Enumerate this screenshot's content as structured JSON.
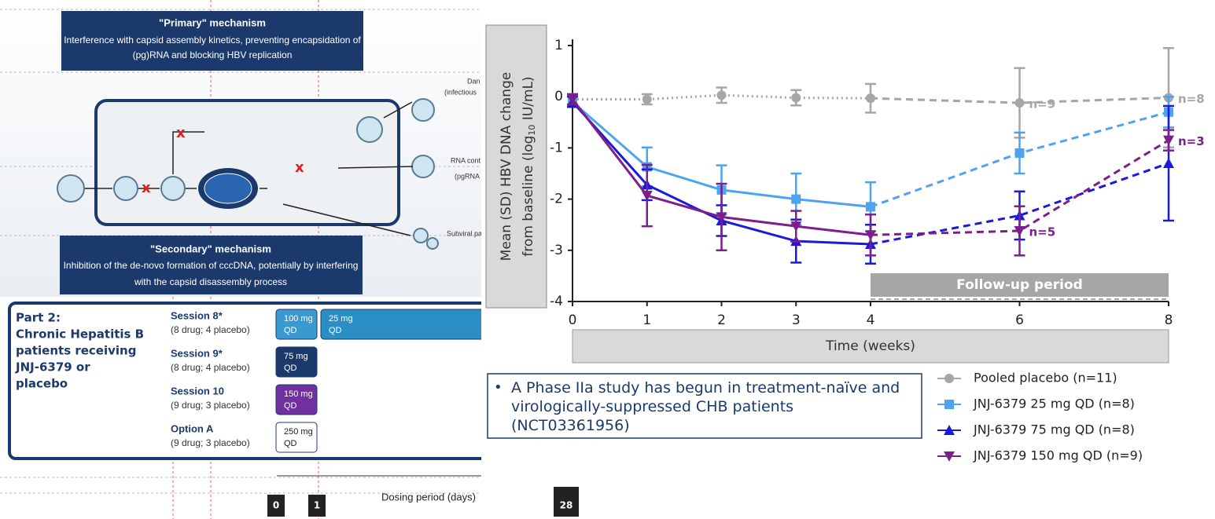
{
  "diagram": {
    "primary_title": "\"Primary\" mechanism",
    "primary_lines": [
      "Interference with capsid assembly kinetics, preventing encapsidation of",
      "(pg)RNA and blocking HBV replication"
    ],
    "secondary_title": "\"Secondary\" mechanism",
    "secondary_lines": [
      "Inhibition of the de-novo formation of cccDNA, potentially by interfering",
      "with the capsid disassembly process"
    ],
    "side_labels": [
      "Dan",
      "(infectious",
      "RNA cont",
      "(pgRNA",
      "Subviral pa"
    ]
  },
  "table": {
    "part_title": "Part 2:",
    "part_lines": [
      "Chronic Hepatitis B",
      "patients receiving",
      "JNJ-6379 or",
      "placebo"
    ],
    "rows": [
      {
        "session": "Session 8*",
        "detail": "(8 drug; 4 placebo)",
        "doses": [
          [
            "100 mg",
            "QD"
          ],
          [
            "25 mg",
            "QD"
          ]
        ]
      },
      {
        "session": "Session 9*",
        "detail": "(8 drug; 4 placebo)",
        "doses": [
          [
            "75 mg",
            "QD"
          ]
        ]
      },
      {
        "session": "Session 10",
        "detail": "(9 drug; 3 placebo)",
        "doses": [
          [
            "150 mg",
            "QD"
          ]
        ]
      },
      {
        "session": "Option A",
        "detail": "(9 drug; 3 placebo)",
        "doses": [
          [
            "250 mg",
            "QD"
          ]
        ]
      }
    ]
  },
  "timeline": {
    "start": "0",
    "day1": "1",
    "label": "Dosing period (days)",
    "end": "28"
  },
  "note": "A Phase IIa study has begun in treatment-naïve and virologically-suppressed CHB patients (NCT03361956)",
  "chart_data": {
    "type": "line",
    "y_label_lines": [
      "Mean (SD) HBV DNA change",
      "from baseline (log",
      "10",
      " IU/mL)"
    ],
    "x_label": "Time (weeks)",
    "x": [
      0,
      1,
      2,
      3,
      4,
      6,
      8
    ],
    "xlim": [
      0,
      8
    ],
    "xticks": [
      0,
      1,
      2,
      3,
      4,
      6,
      8
    ],
    "ylim": [
      -4,
      1
    ],
    "yticks": [
      -4,
      -3,
      -2,
      -1,
      0,
      1
    ],
    "followup": {
      "label": "Follow-up period",
      "xlim": [
        4,
        8
      ]
    },
    "series": [
      {
        "name": "Pooled placebo (n=11)",
        "color": "#a6a6a6",
        "marker": "circle",
        "line_style": "dotted",
        "values": [
          -0.05,
          -0.05,
          0.03,
          -0.02,
          -0.03,
          -0.12,
          -0.02
        ],
        "errors": [
          0.1,
          0.1,
          0.15,
          0.15,
          0.28,
          0.68,
          0.97
        ]
      },
      {
        "name": "JNJ-6379 25 mg QD (n=8)",
        "color": "#4da3f0",
        "marker": "square",
        "line_style": "solid",
        "values": [
          -0.1,
          -1.37,
          -1.82,
          -2.0,
          -2.15,
          -1.1,
          -0.3
        ],
        "errors": [
          0.1,
          0.38,
          0.48,
          0.5,
          0.48,
          0.4,
          0.3
        ]
      },
      {
        "name": "JNJ-6379 75 mg QD (n=8)",
        "color": "#1a1ad8",
        "marker": "triangle-up",
        "line_style": "solid",
        "values": [
          -0.1,
          -1.72,
          -2.42,
          -2.82,
          -2.88,
          -2.32,
          -1.3
        ],
        "errors": [
          0.1,
          0.3,
          0.3,
          0.42,
          0.38,
          0.47,
          1.12
        ]
      },
      {
        "name": "JNJ-6379 150 mg QD (n=9)",
        "color": "#7a1f8c",
        "marker": "triangle-down",
        "line_style": "solid",
        "values": [
          -0.05,
          -1.93,
          -2.35,
          -2.53,
          -2.7,
          -2.62,
          -0.85
        ],
        "errors": [
          0.1,
          0.6,
          0.65,
          0.3,
          0.4,
          0.48,
          0.2
        ]
      }
    ],
    "annotations": [
      {
        "text": "n=9",
        "series": 0,
        "x": 6
      },
      {
        "text": "n=8",
        "series": 0,
        "x": 8
      },
      {
        "text": "n=3",
        "series": 3,
        "x": 8
      },
      {
        "text": "n=5",
        "series": 3,
        "x": 6
      }
    ]
  }
}
